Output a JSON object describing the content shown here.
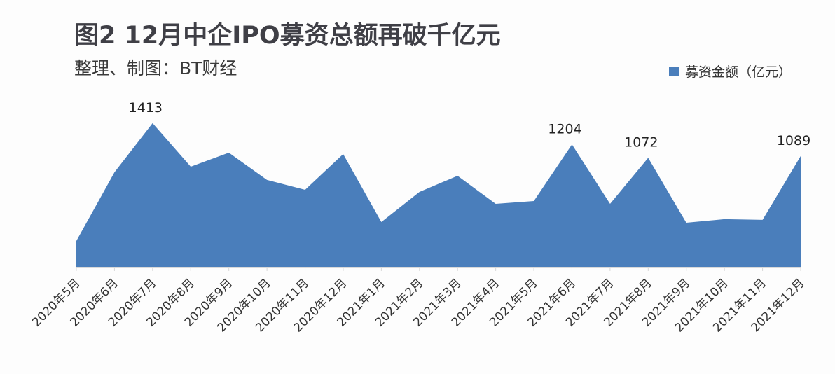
{
  "header": {
    "title": "图2 12月中企IPO募资总额再破千亿元",
    "subtitle": "整理、制图：BT财经"
  },
  "legend": {
    "label": "募资金额（亿元）",
    "color": "#4a7ebb"
  },
  "chart_data": {
    "type": "area",
    "title": "图2 12月中企IPO募资总额再破千亿元",
    "subtitle": "整理、制图：BT财经",
    "xlabel": "",
    "ylabel": "",
    "legend_position": "top-right",
    "grid": false,
    "ylim": [
      0,
      1500
    ],
    "categories": [
      "2020年5月",
      "2020年6月",
      "2020年7月",
      "2020年8月",
      "2020年9月",
      "2020年10月",
      "2020年11月",
      "2020年12月",
      "2021年1月",
      "2021年2月",
      "2021年3月",
      "2021年4月",
      "2021年5月",
      "2021年6月",
      "2021年7月",
      "2021年8月",
      "2021年9月",
      "2021年10月",
      "2021年11月",
      "2021年12月"
    ],
    "series": [
      {
        "name": "募资金额（亿元）",
        "color": "#4a7ebb",
        "values": [
          255,
          930,
          1413,
          985,
          1123,
          855,
          758,
          1109,
          441,
          737,
          896,
          620,
          648,
          1204,
          620,
          1072,
          434,
          469,
          462,
          1089
        ]
      }
    ],
    "data_labels": [
      {
        "index": 2,
        "text": "1413"
      },
      {
        "index": 13,
        "text": "1204"
      },
      {
        "index": 15,
        "text": "1072"
      },
      {
        "index": 19,
        "text": "1089"
      }
    ]
  }
}
